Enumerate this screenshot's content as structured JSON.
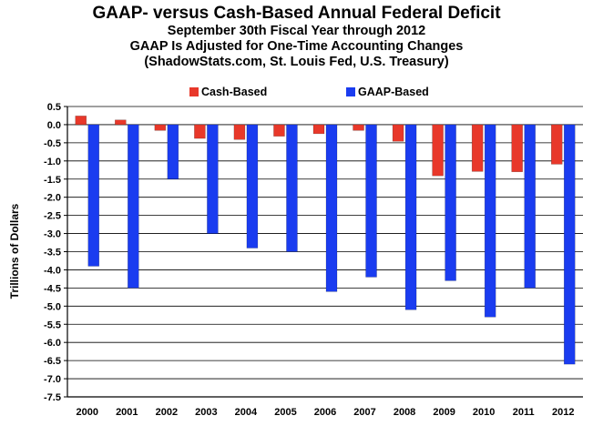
{
  "chart_data": {
    "type": "bar",
    "title": "GAAP- versus Cash-Based Annual Federal Deficit",
    "subtitles": [
      "September 30th Fiscal Year through 2012",
      "GAAP Is Adjusted for One-Time Accounting Changes",
      "(ShadowStats.com, St. Louis Fed, U.S. Treasury)"
    ],
    "xlabel": "",
    "ylabel": "Trillions of Dollars",
    "ylim": [
      -7.5,
      0.5
    ],
    "yticks": [
      0.5,
      0.0,
      -0.5,
      -1.0,
      -1.5,
      -2.0,
      -2.5,
      -3.0,
      -3.5,
      -4.0,
      -4.5,
      -5.0,
      -5.5,
      -6.0,
      -6.5,
      -7.0,
      -7.5
    ],
    "ytick_labels": [
      "0.5",
      "0.0",
      "-0.5",
      "-1.0",
      "-1.5",
      "-2.0",
      "-2.5",
      "-3.0",
      "-3.5",
      "-4.0",
      "-4.5",
      "-5.0",
      "-5.5",
      "-6.0",
      "-6.5",
      "-7.0",
      "-7.5"
    ],
    "grid": true,
    "legend_position": "top-center",
    "categories": [
      "2000",
      "2001",
      "2002",
      "2003",
      "2004",
      "2005",
      "2006",
      "2007",
      "2008",
      "2009",
      "2010",
      "2011",
      "2012"
    ],
    "series": [
      {
        "name": "Cash-Based",
        "color": "#e8382a",
        "values": [
          0.24,
          0.13,
          -0.16,
          -0.38,
          -0.41,
          -0.32,
          -0.25,
          -0.16,
          -0.46,
          -1.41,
          -1.29,
          -1.3,
          -1.09
        ]
      },
      {
        "name": "GAAP-Based",
        "color": "#1a3cf0",
        "values": [
          -3.9,
          -4.5,
          -1.5,
          -3.0,
          -3.4,
          -3.5,
          -4.6,
          -4.2,
          -5.1,
          -4.3,
          -5.3,
          -4.5,
          -6.6
        ]
      }
    ]
  }
}
